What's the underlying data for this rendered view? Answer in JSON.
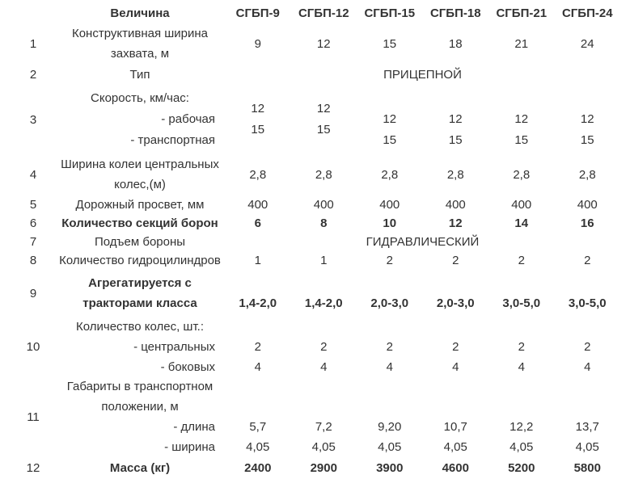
{
  "colors": {
    "text": "#333333",
    "background": "#ffffff"
  },
  "header": {
    "metric_label": "Величина",
    "models": [
      "СГБП-9",
      "СГБП-12",
      "СГБП-15",
      "СГБП-18",
      "СГБП-21",
      "СГБП-24"
    ]
  },
  "rows": {
    "r1": {
      "num": "1",
      "line1": "Конструктивная  ширина",
      "line2": "захвата, м",
      "values": [
        "9",
        "12",
        "15",
        "18",
        "21",
        "24"
      ]
    },
    "r2": {
      "num": "2",
      "label": "Тип",
      "value": "ПРИЦЕПНОЙ"
    },
    "r3": {
      "num": "3",
      "line1": "Скорость, км/час:",
      "line2": "- рабочая",
      "line3": "- транспортная",
      "work": [
        "12",
        "12",
        "12",
        "12",
        "12",
        "12"
      ],
      "transport": [
        "15",
        "15",
        "15",
        "15",
        "15",
        "15"
      ]
    },
    "r4": {
      "num": "4",
      "line1": "Ширина колеи центральных",
      "line2": "колес,(м)",
      "values": [
        "2,8",
        "2,8",
        "2,8",
        "2,8",
        "2,8",
        "2,8"
      ]
    },
    "r5": {
      "num": "5",
      "label": "Дорожный  просвет, мм",
      "values": [
        "400",
        "400",
        "400",
        "400",
        "400",
        "400"
      ]
    },
    "r6": {
      "num": "6",
      "label": "Количество  секций  борон",
      "values": [
        "6",
        "8",
        "10",
        "12",
        "14",
        "16"
      ]
    },
    "r7": {
      "num": "7",
      "label": "Подъем бороны",
      "value": "ГИДРАВЛИЧЕСКИЙ"
    },
    "r8": {
      "num": "8",
      "label": "Количество гидроцилиндров",
      "values": [
        "1",
        "1",
        "2",
        "2",
        "2",
        "2"
      ]
    },
    "r9": {
      "num": "9",
      "line1": "Агрегатируется с",
      "line2": "тракторами  класса",
      "values": [
        "1,4-2,0",
        "1,4-2,0",
        "2,0-3,0",
        "2,0-3,0",
        "3,0-5,0",
        "3,0-5,0"
      ]
    },
    "r10": {
      "num": "10",
      "line1": "Количество колес, шт.:",
      "line2": "- центральных",
      "line3": "- боковых",
      "central": [
        "2",
        "2",
        "2",
        "2",
        "2",
        "2"
      ],
      "side": [
        "4",
        "4",
        "4",
        "4",
        "4",
        "4"
      ]
    },
    "r11": {
      "num": "11",
      "line1": "Габариты  в транспортном",
      "line2": "положении, м",
      "line3": "- длина",
      "line4": "- ширина",
      "length": [
        "5,7",
        "7,2",
        "9,20",
        "10,7",
        "12,2",
        "13,7"
      ],
      "width": [
        "4,05",
        "4,05",
        "4,05",
        "4,05",
        "4,05",
        "4,05"
      ]
    },
    "r12": {
      "num": "12",
      "label": "Масса (кг)",
      "values": [
        "2400",
        "2900",
        "3900",
        "4600",
        "5200",
        "5800"
      ]
    }
  }
}
